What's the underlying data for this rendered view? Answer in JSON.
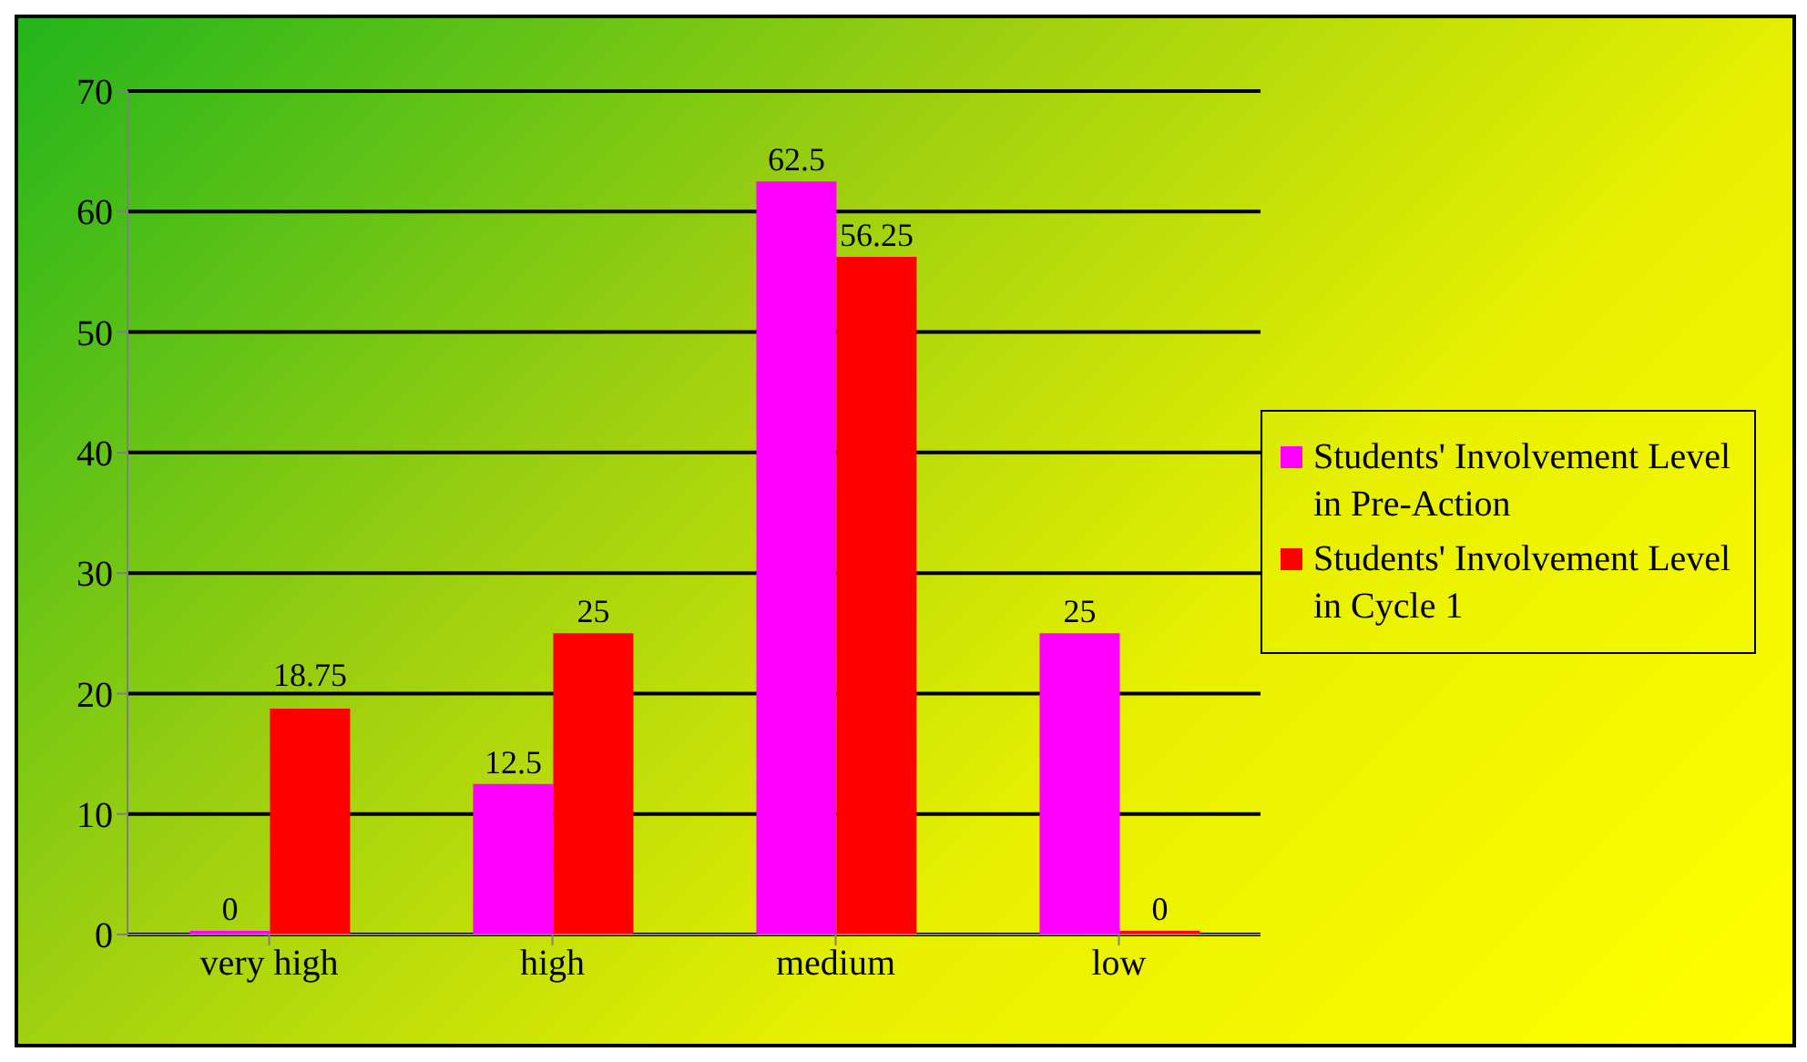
{
  "chart_data": {
    "type": "bar",
    "categories": [
      "very high",
      "high",
      "medium",
      "low"
    ],
    "series": [
      {
        "name": "Students' Involvement Level in Pre-Action",
        "color": "#ff00ff",
        "values": [
          0,
          12.5,
          62.5,
          25
        ]
      },
      {
        "name": "Students' Involvement Level in Cycle 1",
        "color": "#ff0000",
        "values": [
          18.75,
          25,
          56.25,
          0
        ]
      }
    ],
    "ylim": [
      0,
      70
    ],
    "yticks": [
      0,
      10,
      20,
      30,
      40,
      50,
      60,
      70
    ],
    "grid": "y",
    "legend": "right",
    "data_labels": true
  }
}
